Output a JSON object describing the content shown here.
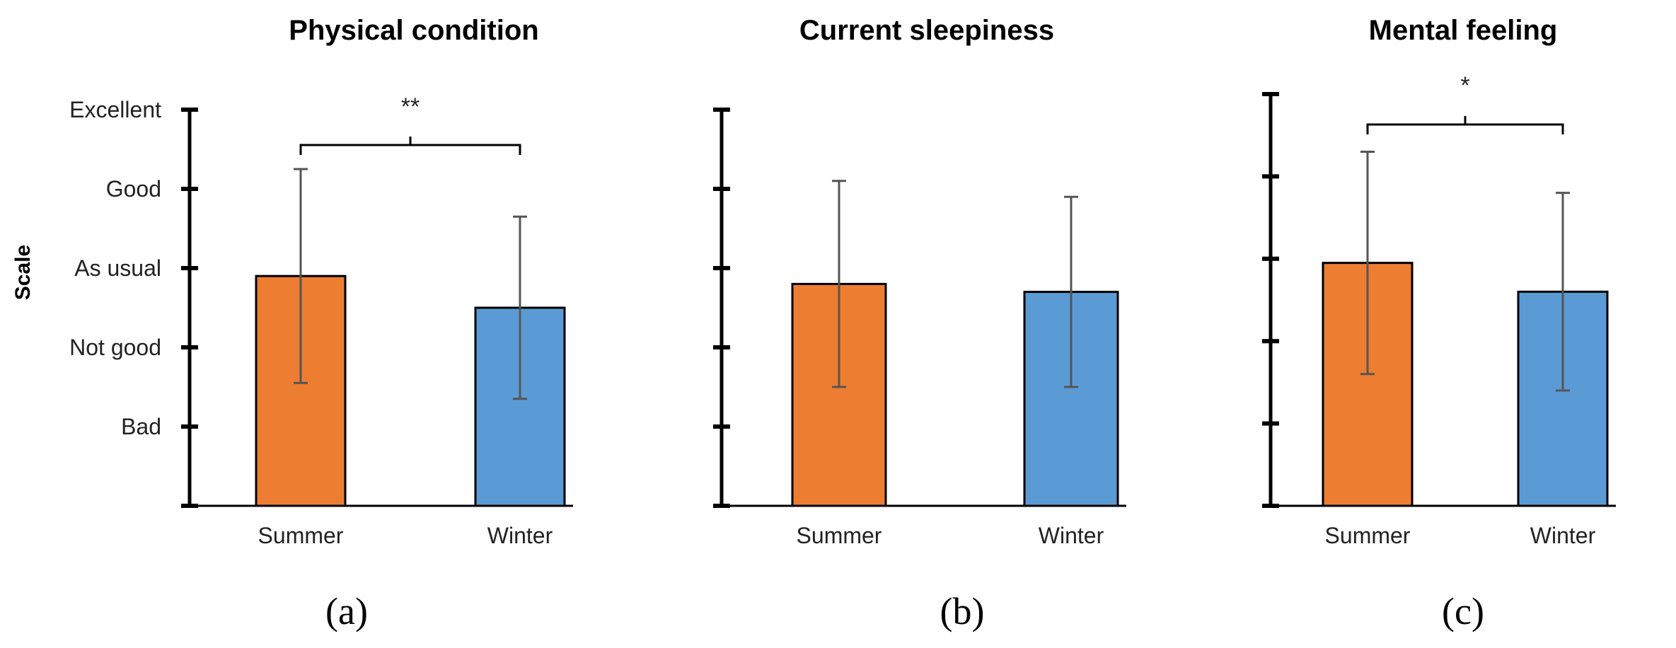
{
  "chart_data": [
    {
      "type": "bar",
      "title": "Physical condition",
      "panel_label": "(a)",
      "ylabel": "Scale",
      "ytick_labels": [
        "Bad",
        "Not good",
        "As usual",
        "Good",
        "Excellent"
      ],
      "ylim": [
        0,
        5
      ],
      "categories": [
        "Summer",
        "Winter"
      ],
      "values": [
        2.9,
        2.5
      ],
      "errors": [
        1.35,
        1.15
      ],
      "colors": [
        "#ED7D31",
        "#5B9BD5"
      ],
      "significance": "**"
    },
    {
      "type": "bar",
      "title": "Current sleepiness",
      "panel_label": "(b)",
      "ytick_labels": [],
      "ylim": [
        0,
        5
      ],
      "categories": [
        "Summer",
        "Winter"
      ],
      "values": [
        2.8,
        2.7
      ],
      "errors": [
        1.3,
        1.2
      ],
      "colors": [
        "#ED7D31",
        "#5B9BD5"
      ],
      "significance": ""
    },
    {
      "type": "bar",
      "title": "Mental feeling",
      "panel_label": "(c)",
      "ytick_labels": [],
      "ylim": [
        0,
        5
      ],
      "categories": [
        "Summer",
        "Winter"
      ],
      "values": [
        2.95,
        2.6
      ],
      "errors": [
        1.35,
        1.2
      ],
      "colors": [
        "#ED7D31",
        "#5B9BD5"
      ],
      "significance": "*"
    }
  ]
}
